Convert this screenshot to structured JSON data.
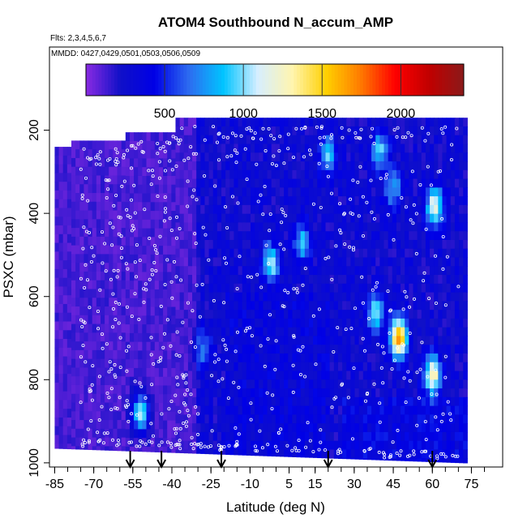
{
  "chart_data": {
    "type": "heatmap",
    "title": "ATOM4 Southbound N_accum_AMP",
    "subtitle_flights": "Flts: 2,3,4,5,6,7",
    "subtitle_dates": "MMDD: 0427,0429,0501,0503,0506,0509",
    "xlabel": "Latitude (deg N)",
    "ylabel": "PSXC (mbar)",
    "xlim": [
      -87,
      87
    ],
    "ylim": [
      1010,
      0
    ],
    "x_tick_labels": [
      "-85",
      "-70",
      "-55",
      "-40",
      "-25",
      "-10",
      "5",
      "15",
      "30",
      "45",
      "60",
      "75"
    ],
    "x_ticks": [
      -85,
      -70,
      -55,
      -40,
      -25,
      -10,
      5,
      15,
      30,
      45,
      60,
      75
    ],
    "y_tick_labels": [
      "200",
      "400",
      "600",
      "800",
      "1000"
    ],
    "y_ticks": [
      200,
      400,
      600,
      800,
      1000
    ],
    "colorbar": {
      "range": [
        0,
        2400
      ],
      "tick_labels": [
        "500",
        "1000",
        "1500",
        "2000"
      ],
      "tick_values": [
        500,
        1000,
        1500,
        2000
      ],
      "colors": [
        "#8a2be2",
        "#1010c8",
        "#0000e6",
        "#2d6cf0",
        "#00c4ff",
        "#d6eeff",
        "#fff5b0",
        "#ffd000",
        "#ff7a00",
        "#ff0000",
        "#c00000",
        "#8b1a1a"
      ]
    },
    "data_extent": {
      "lat_min": -85,
      "lat_max": 72,
      "top_pressure": 150,
      "bottom_pressure_south": 965,
      "bottom_pressure_north": 1000
    },
    "hotspots": [
      {
        "lat": 47,
        "p": 700,
        "value": 1450
      },
      {
        "lat": 60,
        "p": 790,
        "value": 1100
      },
      {
        "lat": 61,
        "p": 385,
        "value": 1000
      },
      {
        "lat": -52,
        "p": 880,
        "value": 950
      },
      {
        "lat": -2,
        "p": 520,
        "value": 800
      },
      {
        "lat": 38,
        "p": 640,
        "value": 750
      },
      {
        "lat": 20,
        "p": 260,
        "value": 700
      },
      {
        "lat": 40,
        "p": 250,
        "value": 650
      },
      {
        "lat": 10,
        "p": 470,
        "value": 600
      },
      {
        "lat": -28,
        "p": 730,
        "value": 500
      },
      {
        "lat": 45,
        "p": 340,
        "value": 550
      }
    ],
    "arrow_markers_lat": [
      -56,
      -44,
      -21,
      20,
      60
    ]
  }
}
